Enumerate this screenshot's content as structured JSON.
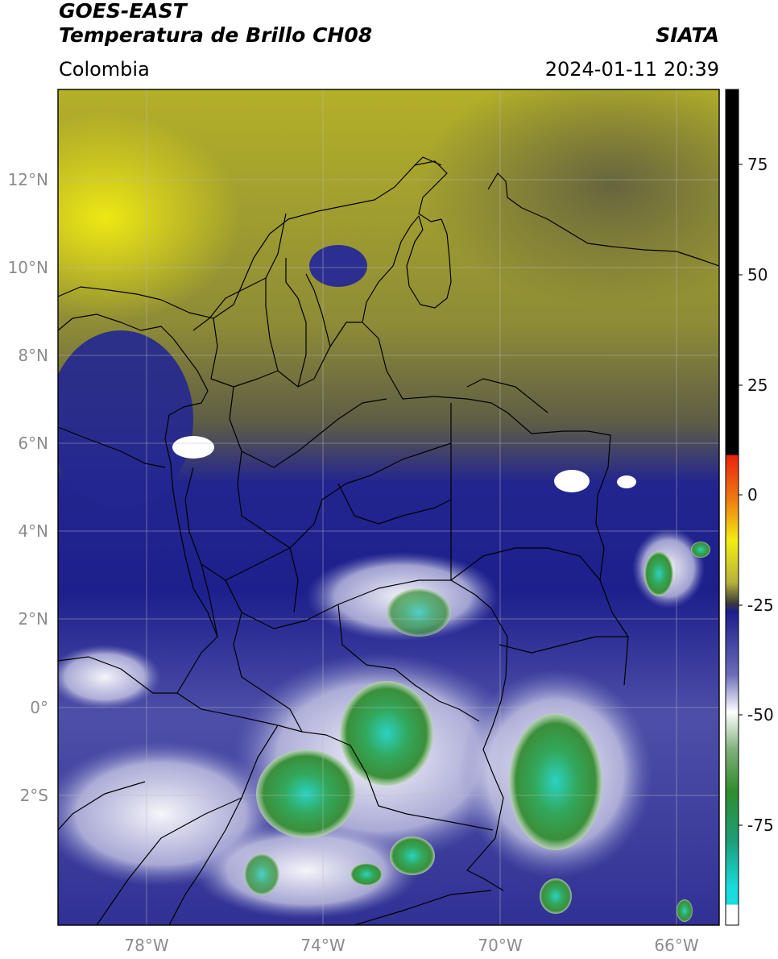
{
  "header": {
    "title_line1": "GOES-EAST",
    "title_line2": "Temperatura de Brillo CH08",
    "source": "SIATA",
    "region": "Colombia",
    "datetime": "2024-01-11 20:39"
  },
  "map": {
    "lat_ticks": [
      "12°N",
      "10°N",
      "8°N",
      "6°N",
      "4°N",
      "2°N",
      "0°",
      "2°S"
    ],
    "lon_ticks": [
      "78°W",
      "74°W",
      "70°W",
      "66°W"
    ]
  },
  "colorbar": {
    "ticks": [
      "75",
      "50",
      "25",
      "0",
      "-25",
      "-50",
      "-75"
    ],
    "colors": {
      "black": "#000000",
      "red": "#e8230e",
      "orange": "#f2a10c",
      "yellow": "#f2ec12",
      "olive": "#7f7f33",
      "navy": "#1c1e8c",
      "white": "#ffffff",
      "green": "#2f8c2e",
      "cyan": "#19dcdc"
    }
  }
}
